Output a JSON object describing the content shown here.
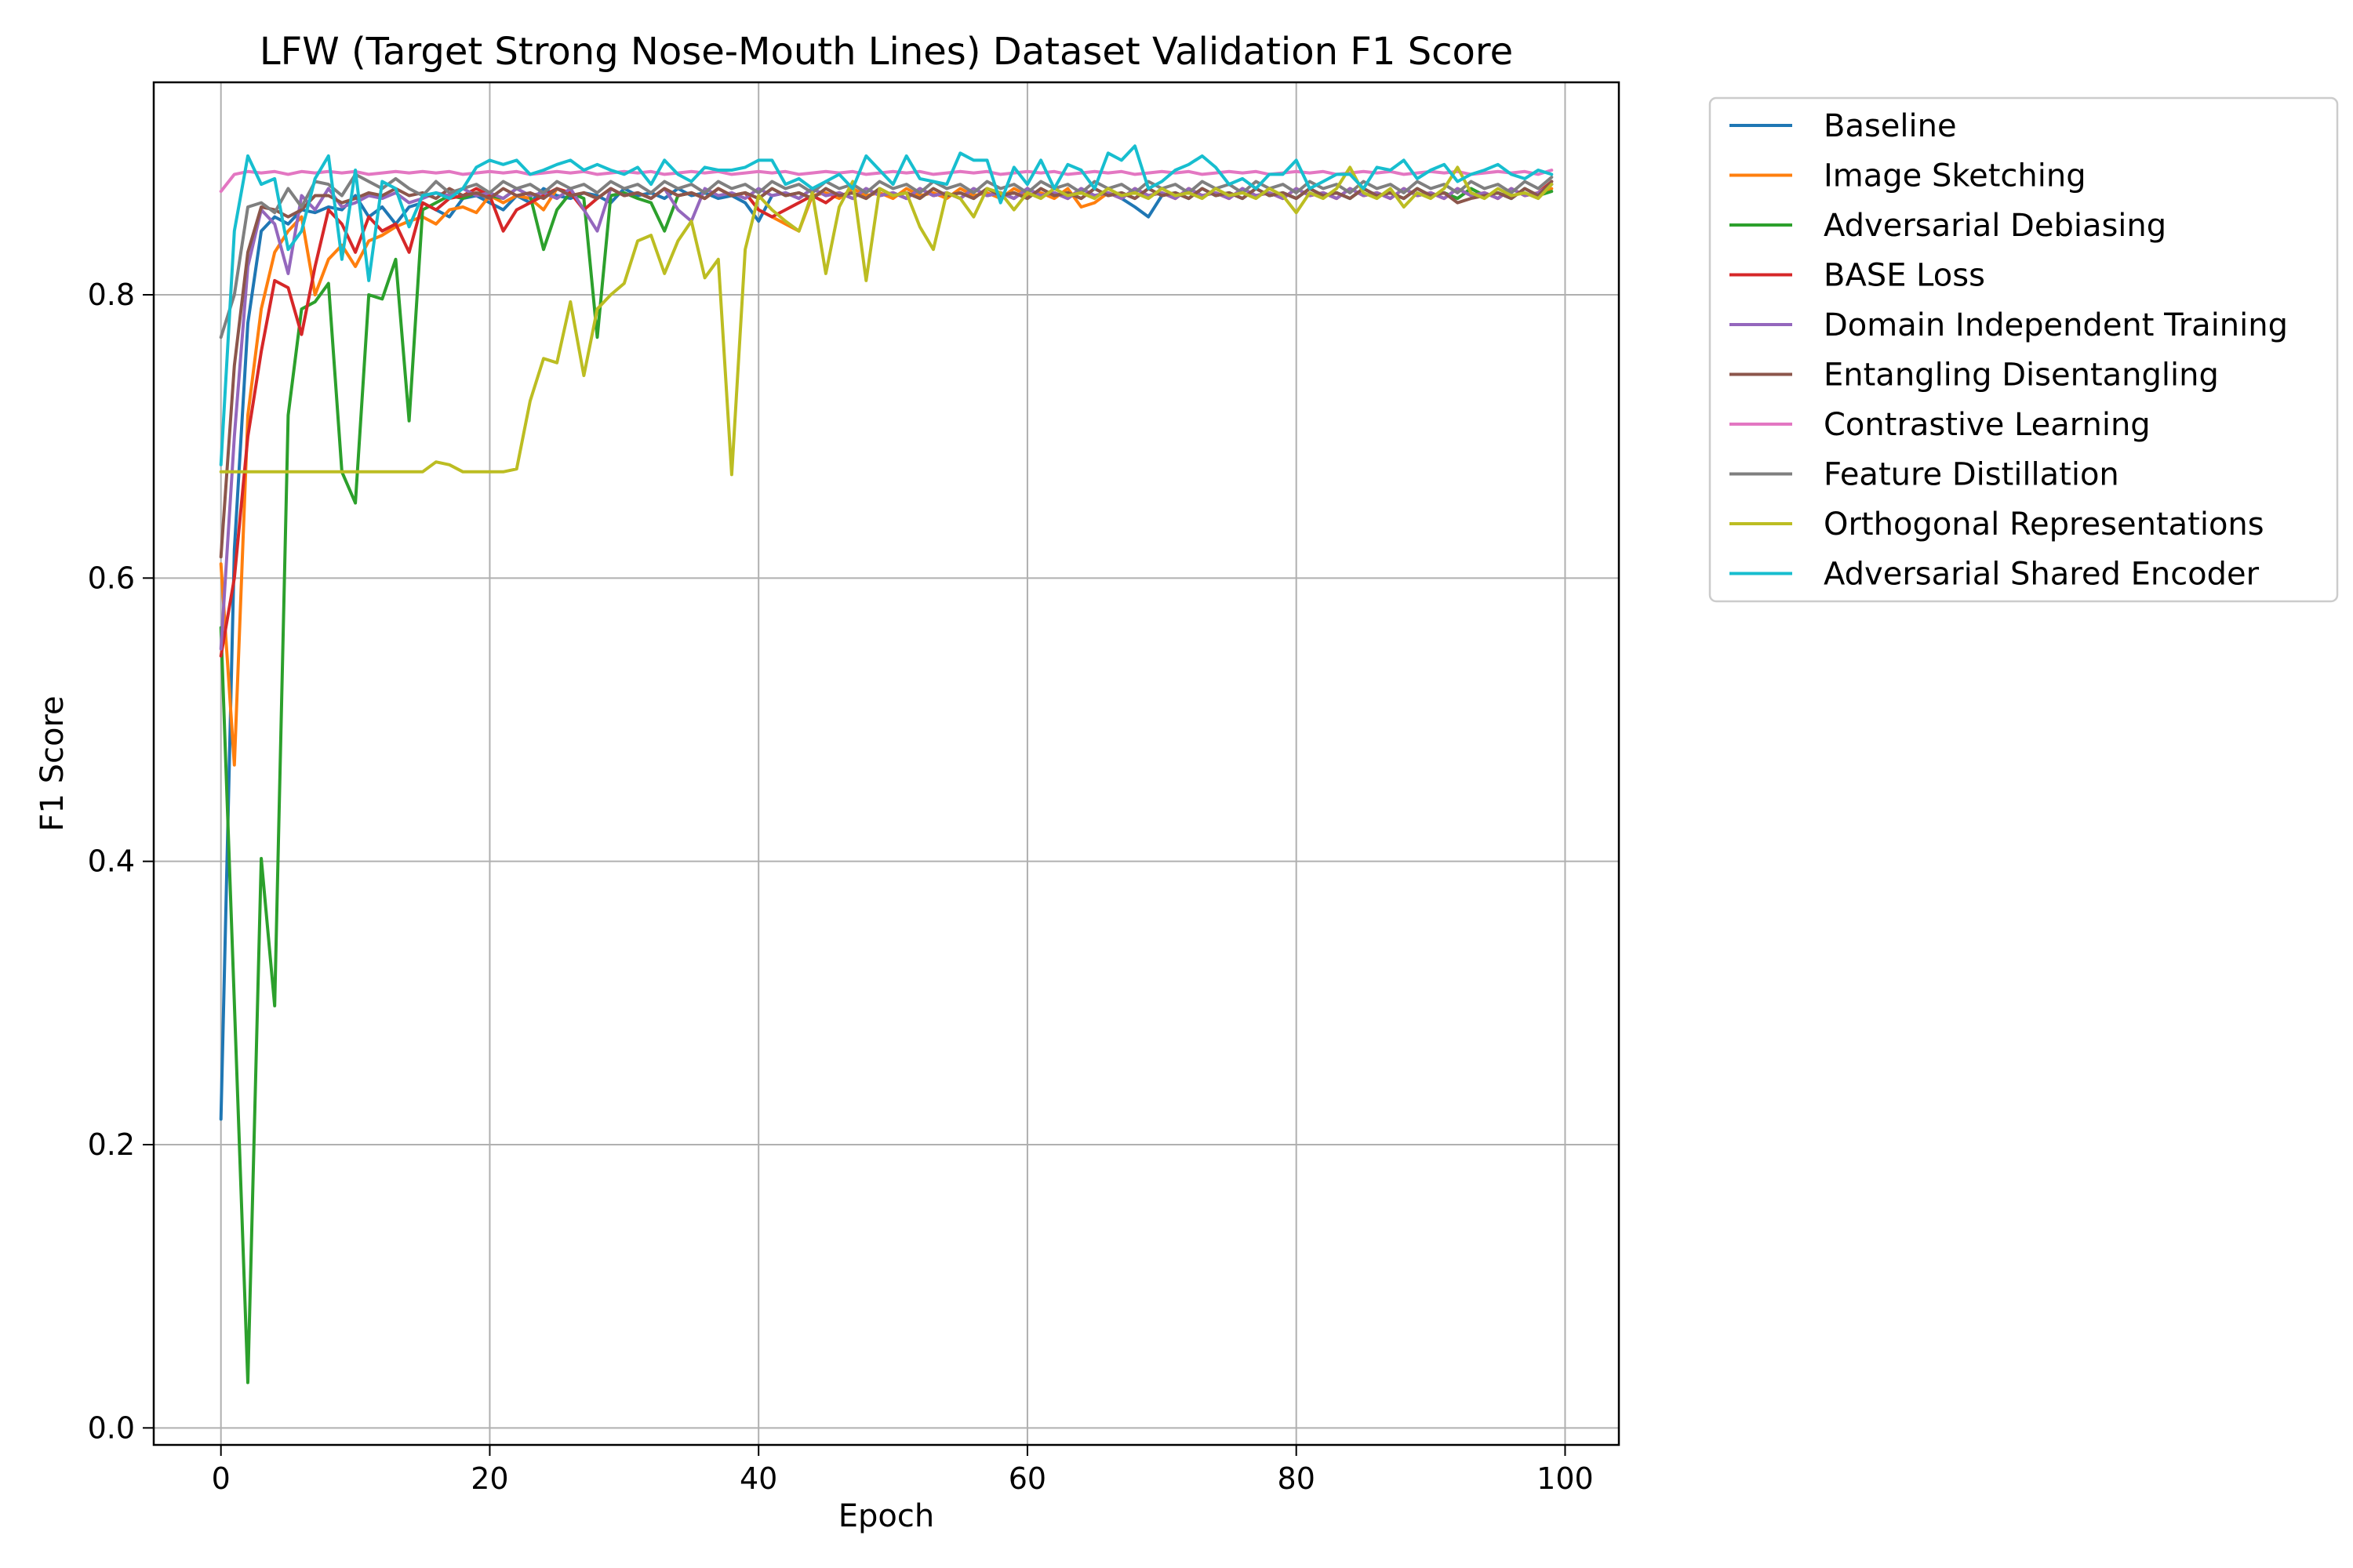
{
  "chart_data": {
    "type": "line",
    "title": "LFW (Target Strong Nose-Mouth Lines) Dataset Validation F1 Score",
    "xlabel": "Epoch",
    "ylabel": "F1 Score",
    "xlim": [
      -5,
      104
    ],
    "ylim": [
      -0.012,
      0.95
    ],
    "xticks": [
      0,
      20,
      40,
      60,
      80,
      100
    ],
    "yticks": [
      0.0,
      0.2,
      0.4,
      0.6,
      0.8
    ],
    "xtick_labels": [
      "0",
      "20",
      "40",
      "60",
      "80",
      "100"
    ],
    "ytick_labels": [
      "0.0",
      "0.2",
      "0.4",
      "0.6",
      "0.8"
    ],
    "grid": true,
    "legend_placement": "outside upper right",
    "x": [
      0,
      1,
      2,
      3,
      4,
      5,
      6,
      7,
      8,
      9,
      10,
      11,
      12,
      13,
      14,
      15,
      16,
      17,
      18,
      19,
      20,
      21,
      22,
      23,
      24,
      25,
      26,
      27,
      28,
      29,
      30,
      31,
      32,
      33,
      34,
      35,
      36,
      37,
      38,
      39,
      40,
      41,
      42,
      43,
      44,
      45,
      46,
      47,
      48,
      49,
      50,
      51,
      52,
      53,
      54,
      55,
      56,
      57,
      58,
      59,
      60,
      61,
      62,
      63,
      64,
      65,
      66,
      67,
      68,
      69,
      70,
      71,
      72,
      73,
      74,
      75,
      76,
      77,
      78,
      79,
      80,
      81,
      82,
      83,
      84,
      85,
      86,
      87,
      88,
      89,
      90,
      91,
      92,
      93,
      94,
      95,
      96,
      97,
      98,
      99
    ],
    "series": [
      {
        "name": "Baseline",
        "color": "#1f77b4",
        "values": [
          0.218,
          0.62,
          0.78,
          0.845,
          0.855,
          0.85,
          0.86,
          0.858,
          0.862,
          0.86,
          0.87,
          0.855,
          0.862,
          0.85,
          0.862,
          0.865,
          0.86,
          0.855,
          0.868,
          0.87,
          0.865,
          0.86,
          0.87,
          0.865,
          0.875,
          0.87,
          0.868,
          0.872,
          0.87,
          0.865,
          0.875,
          0.87,
          0.872,
          0.868,
          0.875,
          0.87,
          0.872,
          0.868,
          0.87,
          0.865,
          0.852,
          0.87,
          0.872,
          0.868,
          0.875,
          0.87,
          0.872,
          0.868,
          0.875,
          0.87,
          0.872,
          0.868,
          0.875,
          0.87,
          0.872,
          0.868,
          0.875,
          0.87,
          0.872,
          0.868,
          0.875,
          0.87,
          0.872,
          0.868,
          0.875,
          0.87,
          0.872,
          0.868,
          0.862,
          0.855,
          0.87,
          0.872,
          0.868,
          0.875,
          0.87,
          0.872,
          0.868,
          0.875,
          0.87,
          0.872,
          0.868,
          0.875,
          0.87,
          0.872,
          0.868,
          0.875,
          0.87,
          0.872,
          0.868,
          0.875,
          0.87,
          0.872,
          0.868,
          0.875,
          0.87,
          0.872,
          0.868,
          0.875,
          0.87,
          0.878
        ]
      },
      {
        "name": "Image Sketching",
        "color": "#ff7f0e",
        "values": [
          0.61,
          0.468,
          0.715,
          0.79,
          0.83,
          0.845,
          0.855,
          0.8,
          0.825,
          0.835,
          0.82,
          0.838,
          0.842,
          0.848,
          0.852,
          0.855,
          0.85,
          0.86,
          0.862,
          0.858,
          0.87,
          0.865,
          0.87,
          0.868,
          0.86,
          0.875,
          0.87,
          0.872,
          0.868,
          0.875,
          0.87,
          0.872,
          0.868,
          0.875,
          0.87,
          0.872,
          0.868,
          0.875,
          0.87,
          0.872,
          0.86,
          0.855,
          0.85,
          0.845,
          0.87,
          0.872,
          0.868,
          0.875,
          0.87,
          0.872,
          0.868,
          0.875,
          0.87,
          0.872,
          0.868,
          0.875,
          0.87,
          0.872,
          0.868,
          0.875,
          0.87,
          0.872,
          0.868,
          0.875,
          0.862,
          0.865,
          0.872,
          0.868,
          0.875,
          0.87,
          0.872,
          0.868,
          0.875,
          0.87,
          0.872,
          0.868,
          0.875,
          0.87,
          0.872,
          0.868,
          0.875,
          0.87,
          0.872,
          0.868,
          0.875,
          0.87,
          0.872,
          0.868,
          0.875,
          0.87,
          0.872,
          0.868,
          0.875,
          0.87,
          0.872,
          0.868,
          0.875,
          0.87,
          0.872,
          0.875
        ]
      },
      {
        "name": "Adversarial Debiasing",
        "color": "#2ca02c",
        "values": [
          0.565,
          0.3,
          0.032,
          0.402,
          0.298,
          0.715,
          0.79,
          0.795,
          0.808,
          0.675,
          0.653,
          0.8,
          0.797,
          0.825,
          0.711,
          0.86,
          0.865,
          0.87,
          0.868,
          0.872,
          0.87,
          0.868,
          0.875,
          0.87,
          0.832,
          0.86,
          0.872,
          0.868,
          0.77,
          0.87,
          0.872,
          0.868,
          0.865,
          0.845,
          0.87,
          0.872,
          0.868,
          0.875,
          0.87,
          0.872,
          0.868,
          0.875,
          0.87,
          0.872,
          0.868,
          0.875,
          0.87,
          0.872,
          0.868,
          0.875,
          0.87,
          0.872,
          0.868,
          0.875,
          0.87,
          0.872,
          0.868,
          0.875,
          0.87,
          0.872,
          0.868,
          0.875,
          0.87,
          0.872,
          0.868,
          0.875,
          0.87,
          0.872,
          0.868,
          0.875,
          0.87,
          0.872,
          0.868,
          0.875,
          0.87,
          0.872,
          0.868,
          0.875,
          0.87,
          0.872,
          0.868,
          0.875,
          0.87,
          0.872,
          0.868,
          0.875,
          0.87,
          0.872,
          0.868,
          0.875,
          0.87,
          0.872,
          0.868,
          0.875,
          0.87,
          0.872,
          0.868,
          0.875,
          0.87,
          0.873
        ]
      },
      {
        "name": "BASE Loss",
        "color": "#d62728",
        "values": [
          0.545,
          0.6,
          0.7,
          0.76,
          0.81,
          0.805,
          0.772,
          0.82,
          0.86,
          0.85,
          0.83,
          0.855,
          0.845,
          0.85,
          0.83,
          0.865,
          0.86,
          0.868,
          0.87,
          0.875,
          0.87,
          0.845,
          0.86,
          0.865,
          0.87,
          0.875,
          0.872,
          0.86,
          0.868,
          0.875,
          0.87,
          0.872,
          0.868,
          0.875,
          0.87,
          0.872,
          0.868,
          0.875,
          0.87,
          0.872,
          0.86,
          0.855,
          0.86,
          0.865,
          0.87,
          0.865,
          0.872,
          0.868,
          0.875,
          0.87,
          0.872,
          0.868,
          0.875,
          0.87,
          0.872,
          0.868,
          0.875,
          0.87,
          0.872,
          0.868,
          0.875,
          0.87,
          0.872,
          0.868,
          0.875,
          0.87,
          0.872,
          0.868,
          0.875,
          0.87,
          0.872,
          0.868,
          0.875,
          0.87,
          0.872,
          0.868,
          0.875,
          0.87,
          0.872,
          0.868,
          0.875,
          0.87,
          0.872,
          0.868,
          0.875,
          0.87,
          0.872,
          0.868,
          0.875,
          0.87,
          0.872,
          0.868,
          0.875,
          0.87,
          0.872,
          0.868,
          0.875,
          0.87,
          0.872,
          0.88
        ]
      },
      {
        "name": "Domain Independent Training",
        "color": "#9467bd",
        "values": [
          0.55,
          0.7,
          0.82,
          0.86,
          0.85,
          0.815,
          0.87,
          0.86,
          0.875,
          0.862,
          0.865,
          0.87,
          0.868,
          0.872,
          0.865,
          0.868,
          0.872,
          0.87,
          0.875,
          0.87,
          0.872,
          0.868,
          0.875,
          0.87,
          0.872,
          0.868,
          0.875,
          0.86,
          0.845,
          0.875,
          0.87,
          0.872,
          0.868,
          0.875,
          0.86,
          0.852,
          0.875,
          0.87,
          0.872,
          0.868,
          0.875,
          0.87,
          0.872,
          0.868,
          0.875,
          0.87,
          0.872,
          0.868,
          0.875,
          0.87,
          0.872,
          0.868,
          0.875,
          0.87,
          0.872,
          0.868,
          0.875,
          0.87,
          0.872,
          0.868,
          0.875,
          0.87,
          0.872,
          0.868,
          0.875,
          0.87,
          0.872,
          0.868,
          0.875,
          0.87,
          0.872,
          0.868,
          0.875,
          0.87,
          0.872,
          0.868,
          0.875,
          0.87,
          0.872,
          0.868,
          0.875,
          0.87,
          0.872,
          0.868,
          0.875,
          0.87,
          0.872,
          0.868,
          0.875,
          0.87,
          0.872,
          0.868,
          0.875,
          0.87,
          0.872,
          0.868,
          0.875,
          0.87,
          0.872,
          0.878
        ]
      },
      {
        "name": "Entangling Disentangling",
        "color": "#8c564b",
        "values": [
          0.615,
          0.75,
          0.83,
          0.862,
          0.86,
          0.855,
          0.86,
          0.87,
          0.87,
          0.865,
          0.868,
          0.872,
          0.87,
          0.875,
          0.87,
          0.872,
          0.868,
          0.875,
          0.87,
          0.872,
          0.868,
          0.875,
          0.87,
          0.872,
          0.868,
          0.875,
          0.87,
          0.872,
          0.868,
          0.875,
          0.87,
          0.872,
          0.868,
          0.875,
          0.87,
          0.872,
          0.868,
          0.875,
          0.87,
          0.872,
          0.868,
          0.875,
          0.87,
          0.872,
          0.868,
          0.875,
          0.87,
          0.872,
          0.868,
          0.875,
          0.87,
          0.872,
          0.868,
          0.875,
          0.87,
          0.872,
          0.868,
          0.875,
          0.87,
          0.872,
          0.868,
          0.875,
          0.87,
          0.872,
          0.868,
          0.875,
          0.87,
          0.872,
          0.868,
          0.875,
          0.87,
          0.872,
          0.868,
          0.875,
          0.87,
          0.872,
          0.868,
          0.875,
          0.87,
          0.872,
          0.868,
          0.875,
          0.87,
          0.872,
          0.868,
          0.875,
          0.87,
          0.872,
          0.868,
          0.875,
          0.87,
          0.872,
          0.865,
          0.868,
          0.87,
          0.872,
          0.868,
          0.875,
          0.87,
          0.88
        ]
      },
      {
        "name": "Contrastive Learning",
        "color": "#e377c2",
        "values": [
          0.873,
          0.885,
          0.887,
          0.886,
          0.887,
          0.885,
          0.887,
          0.886,
          0.887,
          0.886,
          0.887,
          0.885,
          0.886,
          0.887,
          0.886,
          0.887,
          0.886,
          0.887,
          0.885,
          0.886,
          0.887,
          0.886,
          0.887,
          0.885,
          0.886,
          0.887,
          0.886,
          0.887,
          0.885,
          0.886,
          0.887,
          0.886,
          0.887,
          0.885,
          0.886,
          0.887,
          0.886,
          0.887,
          0.885,
          0.886,
          0.887,
          0.886,
          0.887,
          0.885,
          0.886,
          0.887,
          0.886,
          0.887,
          0.885,
          0.886,
          0.887,
          0.886,
          0.887,
          0.885,
          0.886,
          0.887,
          0.886,
          0.887,
          0.885,
          0.886,
          0.887,
          0.886,
          0.887,
          0.885,
          0.886,
          0.887,
          0.886,
          0.887,
          0.885,
          0.886,
          0.887,
          0.886,
          0.887,
          0.885,
          0.886,
          0.887,
          0.886,
          0.887,
          0.885,
          0.886,
          0.887,
          0.886,
          0.887,
          0.885,
          0.886,
          0.887,
          0.886,
          0.887,
          0.885,
          0.886,
          0.887,
          0.886,
          0.887,
          0.885,
          0.886,
          0.887,
          0.886,
          0.887,
          0.885,
          0.888
        ]
      },
      {
        "name": "Feature Distillation",
        "color": "#7f7f7f",
        "values": [
          0.77,
          0.8,
          0.862,
          0.865,
          0.858,
          0.875,
          0.862,
          0.88,
          0.878,
          0.87,
          0.885,
          0.88,
          0.875,
          0.882,
          0.875,
          0.87,
          0.88,
          0.872,
          0.875,
          0.878,
          0.872,
          0.88,
          0.875,
          0.878,
          0.872,
          0.88,
          0.875,
          0.878,
          0.872,
          0.88,
          0.875,
          0.878,
          0.872,
          0.88,
          0.875,
          0.878,
          0.872,
          0.88,
          0.875,
          0.878,
          0.872,
          0.88,
          0.875,
          0.878,
          0.872,
          0.88,
          0.875,
          0.878,
          0.872,
          0.88,
          0.875,
          0.878,
          0.872,
          0.88,
          0.875,
          0.878,
          0.872,
          0.88,
          0.875,
          0.878,
          0.872,
          0.88,
          0.875,
          0.878,
          0.872,
          0.88,
          0.875,
          0.878,
          0.872,
          0.88,
          0.875,
          0.878,
          0.872,
          0.88,
          0.875,
          0.878,
          0.872,
          0.88,
          0.875,
          0.878,
          0.872,
          0.88,
          0.875,
          0.878,
          0.872,
          0.88,
          0.875,
          0.878,
          0.872,
          0.88,
          0.875,
          0.878,
          0.872,
          0.88,
          0.875,
          0.878,
          0.872,
          0.88,
          0.875,
          0.883
        ]
      },
      {
        "name": "Orthogonal Representations",
        "color": "#bcbd22",
        "values": [
          0.675,
          0.675,
          0.675,
          0.675,
          0.675,
          0.675,
          0.675,
          0.675,
          0.675,
          0.675,
          0.675,
          0.675,
          0.675,
          0.675,
          0.675,
          0.675,
          0.682,
          0.68,
          0.675,
          0.675,
          0.675,
          0.675,
          0.677,
          0.725,
          0.755,
          0.752,
          0.795,
          0.743,
          0.79,
          0.8,
          0.808,
          0.838,
          0.842,
          0.815,
          0.838,
          0.852,
          0.812,
          0.825,
          0.673,
          0.832,
          0.87,
          0.86,
          0.852,
          0.845,
          0.872,
          0.815,
          0.862,
          0.88,
          0.81,
          0.875,
          0.87,
          0.872,
          0.848,
          0.832,
          0.872,
          0.868,
          0.855,
          0.875,
          0.872,
          0.86,
          0.872,
          0.868,
          0.875,
          0.87,
          0.872,
          0.868,
          0.875,
          0.87,
          0.872,
          0.868,
          0.875,
          0.87,
          0.872,
          0.868,
          0.875,
          0.87,
          0.872,
          0.868,
          0.875,
          0.87,
          0.858,
          0.872,
          0.868,
          0.875,
          0.89,
          0.872,
          0.868,
          0.875,
          0.862,
          0.872,
          0.868,
          0.875,
          0.89,
          0.872,
          0.868,
          0.875,
          0.87,
          0.872,
          0.868,
          0.878
        ]
      },
      {
        "name": "Adversarial Shared Encoder",
        "color": "#17becf",
        "values": [
          0.68,
          0.845,
          0.898,
          0.878,
          0.882,
          0.832,
          0.845,
          0.882,
          0.898,
          0.825,
          0.888,
          0.81,
          0.88,
          0.875,
          0.848,
          0.87,
          0.872,
          0.868,
          0.875,
          0.89,
          0.895,
          0.892,
          0.895,
          0.885,
          0.888,
          0.892,
          0.895,
          0.888,
          0.892,
          0.888,
          0.885,
          0.89,
          0.878,
          0.895,
          0.885,
          0.88,
          0.89,
          0.888,
          0.888,
          0.89,
          0.895,
          0.895,
          0.878,
          0.882,
          0.875,
          0.88,
          0.885,
          0.875,
          0.898,
          0.888,
          0.878,
          0.898,
          0.882,
          0.88,
          0.878,
          0.9,
          0.895,
          0.895,
          0.865,
          0.89,
          0.878,
          0.895,
          0.875,
          0.892,
          0.888,
          0.875,
          0.9,
          0.895,
          0.905,
          0.875,
          0.88,
          0.888,
          0.892,
          0.898,
          0.89,
          0.878,
          0.882,
          0.875,
          0.885,
          0.885,
          0.895,
          0.875,
          0.88,
          0.885,
          0.885,
          0.875,
          0.89,
          0.888,
          0.895,
          0.882,
          0.888,
          0.892,
          0.88,
          0.885,
          0.888,
          0.892,
          0.885,
          0.882,
          0.888,
          0.885
        ]
      }
    ]
  }
}
